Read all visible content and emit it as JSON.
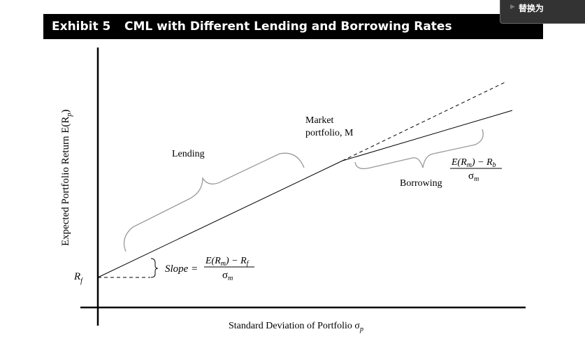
{
  "header": {
    "exhibit": "Exhibit 5",
    "title": "CML with Different Lending and Borrowing Rates"
  },
  "popup": {
    "label": "替换为"
  },
  "diagram": {
    "y_axis_label": "Expected Portfolio Return E(R",
    "y_axis_sub": "p",
    "y_axis_close": ")",
    "x_axis_label": "Standard Deviation of Portfolio σ",
    "x_axis_sub": "p",
    "rf_label": "R",
    "rf_sub": "f",
    "lending_label": "Lending",
    "borrowing_label": "Borrowing",
    "market_line1": "Market",
    "market_line2": "portfolio, M",
    "slope_label": "Slope =",
    "slope_num": "E(R",
    "slope_num_sub": "m",
    "slope_num_rest": ") − R",
    "slope_num_sub2": "f",
    "slope_den": "σ",
    "slope_den_sub": "m",
    "borrow_num": "E(R",
    "borrow_num_sub": "m",
    "borrow_num_rest": ") − R",
    "borrow_num_sub2": "b",
    "borrow_den": "σ",
    "borrow_den_sub": "m"
  }
}
